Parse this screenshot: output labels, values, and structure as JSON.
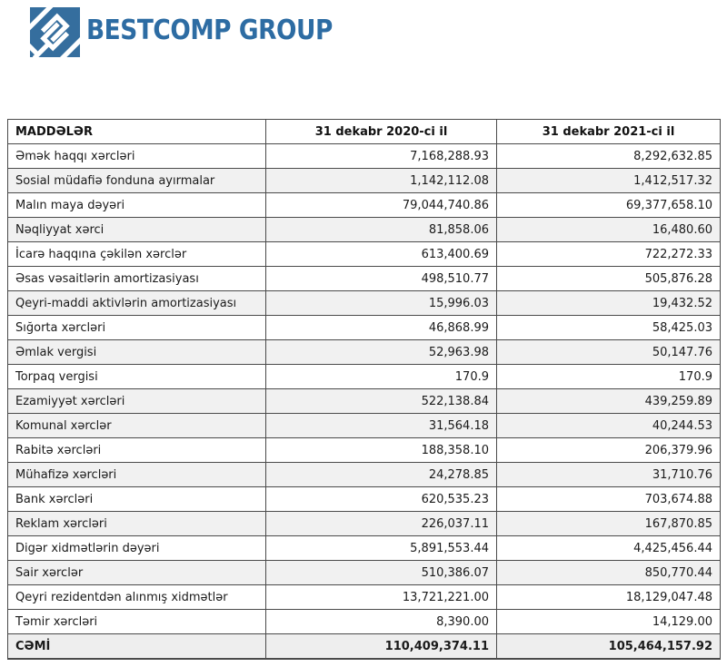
{
  "brand": {
    "name": "BESTCOMP GROUP",
    "logo_color": "#356e9e",
    "wordmark_color": "#2d6ca3"
  },
  "table": {
    "headers": [
      "MADDƏLƏR",
      "31 dekabr 2020-ci il",
      "31 dekabr 2021-ci il"
    ],
    "rows": [
      {
        "label": "Əmək haqqı xərcləri",
        "y2020": "7,168,288.93",
        "y2021": "8,292,632.85",
        "shaded": false
      },
      {
        "label": "Sosial müdafiə fonduna ayırmalar",
        "y2020": "1,142,112.08",
        "y2021": "1,412,517.32",
        "shaded": true
      },
      {
        "label": "Malın maya dəyəri",
        "y2020": "79,044,740.86",
        "y2021": "69,377,658.10",
        "shaded": false
      },
      {
        "label": "Nəqliyyat xərci",
        "y2020": "81,858.06",
        "y2021": "16,480.60",
        "shaded": true
      },
      {
        "label": "İcarə haqqına çəkilən xərclər",
        "y2020": "613,400.69",
        "y2021": "722,272.33",
        "shaded": false
      },
      {
        "label": "Əsas vəsaitlərin amortizasiyası",
        "y2020": "498,510.77",
        "y2021": "505,876.28",
        "shaded": false
      },
      {
        "label": "Qeyri-maddi  aktivlərin amortizasiyası",
        "y2020": "15,996.03",
        "y2021": "19,432.52",
        "shaded": true
      },
      {
        "label": "Sığorta xərcləri",
        "y2020": "46,868.99",
        "y2021": "58,425.03",
        "shaded": false
      },
      {
        "label": "Əmlak vergisi",
        "y2020": "52,963.98",
        "y2021": "50,147.76",
        "shaded": true
      },
      {
        "label": "Torpaq vergisi",
        "y2020": "170.9",
        "y2021": "170.9",
        "shaded": false
      },
      {
        "label": "Ezamiyyət xərcləri",
        "y2020": "522,138.84",
        "y2021": "439,259.89",
        "shaded": true
      },
      {
        "label": "Komunal xərclər",
        "y2020": "31,564.18",
        "y2021": "40,244.53",
        "shaded": true
      },
      {
        "label": "Rabitə xərcləri",
        "y2020": "188,358.10",
        "y2021": "206,379.96",
        "shaded": false
      },
      {
        "label": "Mühafizə xərcləri",
        "y2020": "24,278.85",
        "y2021": "31,710.76",
        "shaded": true
      },
      {
        "label": "Bank xərcləri",
        "y2020": "620,535.23",
        "y2021": "703,674.88",
        "shaded": false
      },
      {
        "label": "Reklam xərcləri",
        "y2020": "226,037.11",
        "y2021": "167,870.85",
        "shaded": true
      },
      {
        "label": "Digər xidmətlərin dəyəri",
        "y2020": "5,891,553.44",
        "y2021": "4,425,456.44",
        "shaded": false
      },
      {
        "label": "Sair xərclər",
        "y2020": "510,386.07",
        "y2021": "850,770.44",
        "shaded": true
      },
      {
        "label": "Qeyri rezidentdən alınmış xidmətlər",
        "y2020": "13,721,221.00",
        "y2021": "18,129,047.48",
        "shaded": false
      },
      {
        "label": "Təmir xərcləri",
        "y2020": "8,390.00",
        "y2021": "14,129.00",
        "shaded": false
      }
    ],
    "total": {
      "label": "CƏMİ",
      "y2020": "110,409,374.11",
      "y2021": "105,464,157.92"
    }
  }
}
